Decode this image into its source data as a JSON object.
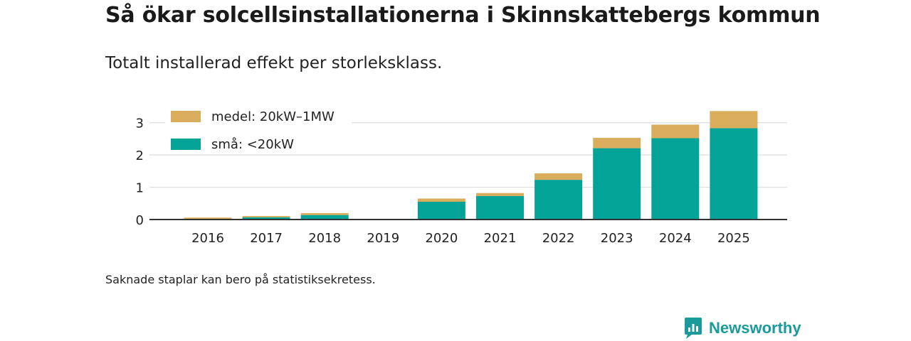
{
  "title": "Så ökar solcellsinstallationerna i Skinnskattebergs kommun",
  "subtitle": "Totalt installerad effekt per storleksklass.",
  "footnote": "Saknade staplar kan bero på statistiksekretess.",
  "brand": {
    "name": "Newsworthy",
    "icon": "newsworthy-logo-icon"
  },
  "colors": {
    "medel": "#d9ad5b",
    "sma": "#03a398",
    "grid": "#dddddd",
    "axis": "#333333"
  },
  "chart_data": {
    "type": "bar",
    "stacked": true,
    "title": "Så ökar solcellsinstallationerna i Skinnskattebergs kommun",
    "subtitle": "Totalt installerad effekt per storleksklass.",
    "xlabel": "",
    "ylabel": "",
    "ylim": [
      0,
      3.5
    ],
    "yticks": [
      0,
      1,
      2,
      3
    ],
    "grid": true,
    "legend_position": "top-left",
    "categories": [
      "2016",
      "2017",
      "2018",
      "2019",
      "2020",
      "2021",
      "2022",
      "2023",
      "2024",
      "2025"
    ],
    "series": [
      {
        "name": "små: <20kW",
        "key": "sma",
        "values": [
          0.02,
          0.07,
          0.14,
          null,
          0.55,
          0.73,
          1.23,
          2.21,
          2.52,
          2.83
        ]
      },
      {
        "name": "medel: 20kW–1MW",
        "key": "medel",
        "values": [
          0.04,
          0.04,
          0.06,
          null,
          0.1,
          0.09,
          0.2,
          0.32,
          0.42,
          0.53
        ]
      }
    ],
    "legend": [
      {
        "label": "medel: 20kW–1MW",
        "key": "medel"
      },
      {
        "label": "små: <20kW",
        "key": "sma"
      }
    ]
  }
}
